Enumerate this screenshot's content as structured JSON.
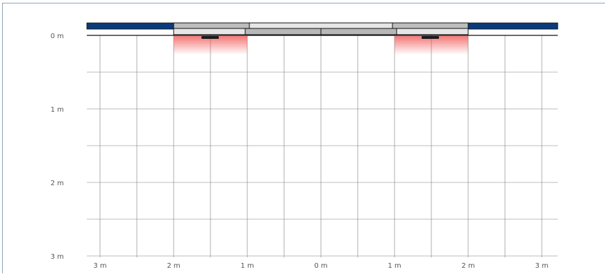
{
  "view": "cross-section",
  "unit": "m",
  "y_axis": {
    "labels": [
      "0 m",
      "1 m",
      "2 m",
      "3 m"
    ]
  },
  "x_axis": {
    "labels": [
      "3 m",
      "2 m",
      "1 m",
      "0 m",
      "1 m",
      "2 m",
      "3 m"
    ]
  },
  "colors": {
    "bar": "#0a3a7a",
    "plate_light": "#dcdcdc",
    "plate_mid": "#b7b7b7",
    "light_zone": "#f05050",
    "grid": "#7a7a7a"
  },
  "icons": [
    "luminaire-left-icon",
    "luminaire-right-icon"
  ]
}
